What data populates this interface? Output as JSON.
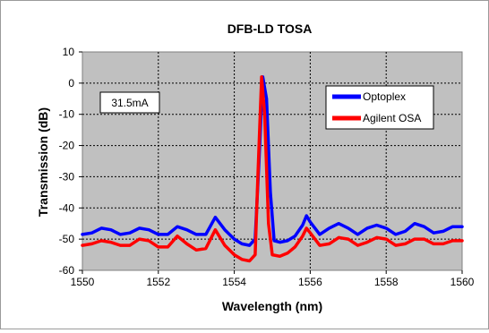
{
  "chart_data": {
    "type": "line",
    "title": "DFB-LD  TOSA",
    "xlabel": "Wavelength  (nm)",
    "ylabel": "Transmission  (dB)",
    "xlim": [
      1550,
      1560
    ],
    "ylim": [
      -60,
      10
    ],
    "xticks": [
      1550,
      1552,
      1554,
      1556,
      1558,
      1560
    ],
    "yticks": [
      10,
      0,
      -10,
      -20,
      -30,
      -40,
      -50,
      -60
    ],
    "grid": true,
    "legend_placement": "top-right",
    "plot_background": "#c0c0c0",
    "annotation": "31.5mA",
    "series": [
      {
        "name": "Optoplex",
        "color": "#0000ff",
        "x": [
          1550.0,
          1550.25,
          1550.5,
          1550.75,
          1551.0,
          1551.25,
          1551.5,
          1551.75,
          1552.0,
          1552.25,
          1552.5,
          1552.75,
          1553.0,
          1553.25,
          1553.5,
          1553.75,
          1554.0,
          1554.2,
          1554.4,
          1554.55,
          1554.65,
          1554.75,
          1554.85,
          1554.95,
          1555.05,
          1555.2,
          1555.4,
          1555.6,
          1555.8,
          1555.9,
          1556.0,
          1556.25,
          1556.5,
          1556.75,
          1557.0,
          1557.25,
          1557.5,
          1557.75,
          1558.0,
          1558.25,
          1558.5,
          1558.75,
          1559.0,
          1559.25,
          1559.5,
          1559.75,
          1560.0
        ],
        "y": [
          -48.5,
          -48.0,
          -46.5,
          -47.0,
          -48.5,
          -48.0,
          -46.5,
          -47.0,
          -48.5,
          -48.5,
          -46.0,
          -47.0,
          -48.5,
          -48.5,
          -43.0,
          -47.0,
          -50.0,
          -51.5,
          -52.0,
          -50.0,
          -25.0,
          2.0,
          -5.0,
          -35.0,
          -50.5,
          -51.0,
          -50.5,
          -49.0,
          -45.5,
          -42.5,
          -44.5,
          -48.5,
          -46.5,
          -45.0,
          -46.5,
          -48.5,
          -46.5,
          -45.5,
          -46.5,
          -48.5,
          -47.5,
          -45.0,
          -46.0,
          -48.0,
          -47.5,
          -46.0,
          -46.0
        ]
      },
      {
        "name": "Agilent OSA",
        "color": "#ff0000",
        "x": [
          1550.0,
          1550.25,
          1550.5,
          1550.75,
          1551.0,
          1551.25,
          1551.5,
          1551.75,
          1552.0,
          1552.25,
          1552.5,
          1552.75,
          1553.0,
          1553.25,
          1553.5,
          1553.75,
          1554.0,
          1554.2,
          1554.4,
          1554.55,
          1554.62,
          1554.72,
          1554.8,
          1554.9,
          1555.0,
          1555.2,
          1555.4,
          1555.6,
          1555.8,
          1555.9,
          1556.0,
          1556.25,
          1556.5,
          1556.75,
          1557.0,
          1557.25,
          1557.5,
          1557.75,
          1558.0,
          1558.25,
          1558.5,
          1558.75,
          1559.0,
          1559.25,
          1559.5,
          1559.75,
          1560.0
        ],
        "y": [
          -52.0,
          -51.5,
          -50.5,
          -51.0,
          -52.0,
          -52.0,
          -50.0,
          -50.5,
          -52.5,
          -52.5,
          -49.0,
          -51.5,
          -53.5,
          -53.0,
          -47.0,
          -52.0,
          -55.0,
          -56.5,
          -57.0,
          -55.0,
          -30.0,
          2.0,
          -10.0,
          -45.0,
          -55.0,
          -55.5,
          -54.5,
          -52.5,
          -49.0,
          -46.5,
          -48.0,
          -52.0,
          -51.5,
          -49.5,
          -50.0,
          -52.0,
          -51.0,
          -49.5,
          -50.0,
          -52.0,
          -51.5,
          -50.0,
          -50.0,
          -51.5,
          -51.5,
          -50.5,
          -50.5
        ]
      }
    ]
  }
}
